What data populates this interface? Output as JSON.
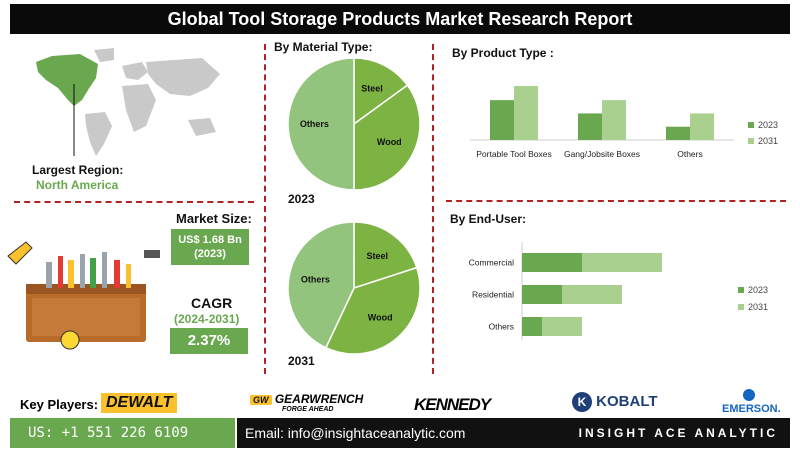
{
  "header": {
    "title": "Global Tool Storage Products Market Research Report"
  },
  "region": {
    "label": "Largest Region:",
    "value": "North America"
  },
  "market": {
    "size_label": "Market Size:",
    "size_value": "US$ 1.68 Bn",
    "size_year": "(2023)",
    "cagr_label": "CAGR",
    "cagr_period": "(2024-2031)",
    "cagr_value": "2.37%"
  },
  "sections": {
    "material": "By Material Type:",
    "product": "By Product Type :",
    "enduser": "By End-User:"
  },
  "footer": {
    "key_players_label": "Key Players:",
    "phone": "US: +1 551 226 6109",
    "email": "Email: info@insightaceanalytic.com",
    "brand": "INSIGHT ACE ANALYTIC"
  },
  "logos": {
    "dewalt": "DEWALT",
    "gearwrench": "GEARWRENCH",
    "gearwrench_tag": "FORGE AHEAD",
    "kennedy": "KENNEDY",
    "kobalt": "KOBALT",
    "emerson": "EMERSON."
  },
  "colors": {
    "dark_green": "#6aa84f",
    "mid_green": "#7cb342",
    "light_green": "#a9d08e",
    "pie_light": "#93c47d",
    "divider": "#b22222"
  },
  "chart_data": [
    {
      "type": "pie",
      "title": "By Material Type:",
      "year_label": "2023",
      "slices": [
        {
          "label": "Steel",
          "value": 15
        },
        {
          "label": "Wood",
          "value": 35
        },
        {
          "label": "Others",
          "value": 50
        }
      ]
    },
    {
      "type": "pie",
      "title": "By Material Type:",
      "year_label": "2031",
      "slices": [
        {
          "label": "Steel",
          "value": 20
        },
        {
          "label": "Wood",
          "value": 37
        },
        {
          "label": "Others",
          "value": 43
        }
      ]
    },
    {
      "type": "bar",
      "title": "By Product Type :",
      "categories": [
        "Portable Tool Boxes",
        "Gang/Jobsite Boxes",
        "Others"
      ],
      "series": [
        {
          "name": "2023",
          "values": [
            45,
            30,
            15
          ]
        },
        {
          "name": "2031",
          "values": [
            61,
            45,
            30
          ]
        }
      ],
      "ylim": [
        0,
        70
      ],
      "legend": "right"
    },
    {
      "type": "bar",
      "orientation": "horizontal",
      "title": "By End-User:",
      "categories": [
        "Commercial",
        "Residential",
        "Others"
      ],
      "series": [
        {
          "name": "2023",
          "values": [
            30,
            20,
            10
          ]
        },
        {
          "name": "2031",
          "values": [
            40,
            30,
            20
          ]
        }
      ],
      "stacked": true,
      "xlim": [
        0,
        80
      ],
      "legend": "right"
    }
  ]
}
